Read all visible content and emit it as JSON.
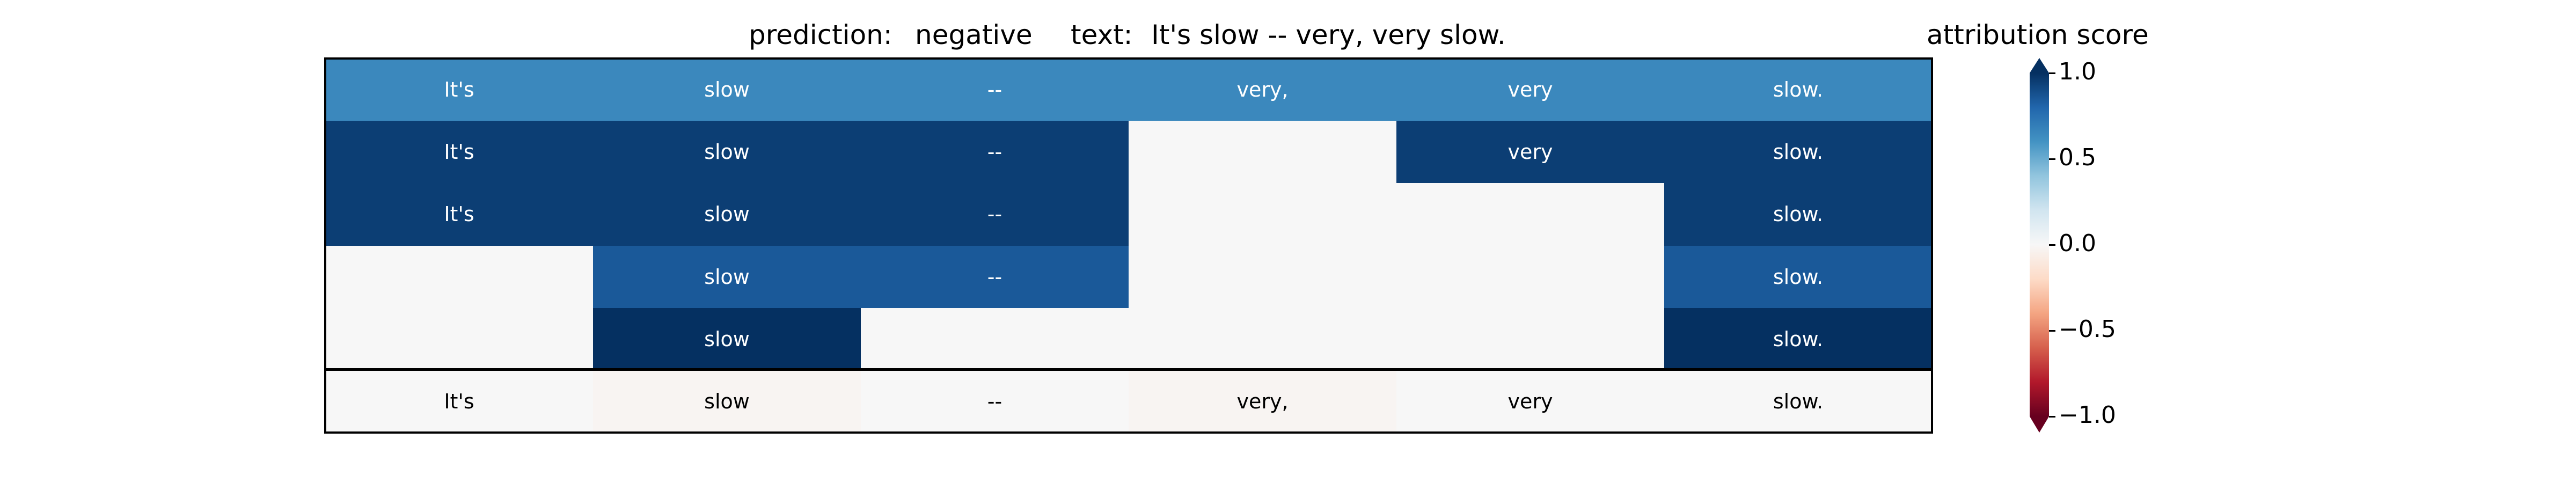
{
  "header": {
    "prediction_label": "prediction:",
    "prediction_value": "negative",
    "text_label": "text:",
    "text_value": "It's slow -- very, very slow."
  },
  "colorbar": {
    "title": "attribution score",
    "ticks": [
      "1.0",
      "0.5",
      "0.0",
      "−0.5",
      "−1.0"
    ],
    "range": [
      -1.0,
      1.0
    ],
    "colormap": "RdBu"
  },
  "chart_data": {
    "type": "heatmap",
    "tokens": [
      "It's",
      "slow",
      "--",
      "very,",
      "very",
      "slow."
    ],
    "rows": [
      [
        0.65,
        0.65,
        0.65,
        0.65,
        0.65,
        0.65
      ],
      [
        0.95,
        0.95,
        0.95,
        0.0,
        0.95,
        0.95
      ],
      [
        0.95,
        0.95,
        0.95,
        0.0,
        0.0,
        0.95
      ],
      [
        0.0,
        0.85,
        0.85,
        0.0,
        0.0,
        0.85
      ],
      [
        0.0,
        1.0,
        0.0,
        0.0,
        0.0,
        1.0
      ]
    ],
    "show_text": [
      [
        true,
        true,
        true,
        true,
        true,
        true
      ],
      [
        true,
        true,
        true,
        false,
        true,
        true
      ],
      [
        true,
        true,
        true,
        false,
        false,
        true
      ],
      [
        false,
        true,
        true,
        false,
        false,
        true
      ],
      [
        false,
        true,
        false,
        false,
        false,
        true
      ]
    ],
    "attribution_row": [
      0.0,
      -0.02,
      0.0,
      -0.02,
      0.0,
      0.0
    ]
  }
}
